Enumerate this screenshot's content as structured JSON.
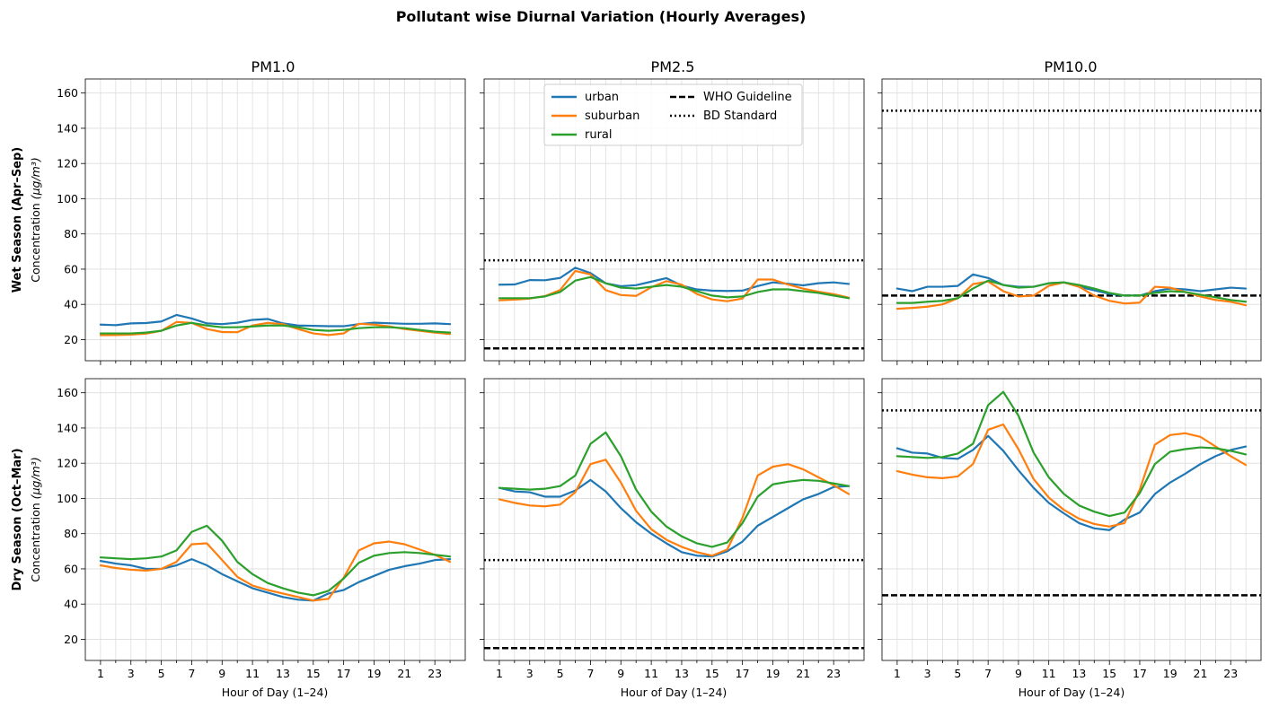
{
  "chart_data": {
    "type": "line",
    "title": "Pollutant wise Diurnal Variation (Hourly Averages)",
    "xlabel": "Hour of Day (1–24)",
    "ylabel_unit": "Concentration",
    "ylabel_unit_math": "(μg/m³)",
    "xlim": [
      0,
      25
    ],
    "ylim": [
      8,
      168
    ],
    "xticks": [
      1,
      3,
      5,
      7,
      9,
      11,
      13,
      15,
      17,
      19,
      21,
      23
    ],
    "yticks": [
      20,
      40,
      60,
      80,
      100,
      120,
      140,
      160
    ],
    "grid": true,
    "legend_placement": "upper center of PM2.5 wet-season panel",
    "legend": {
      "series": [
        "urban",
        "suburban",
        "rural"
      ],
      "references": [
        "WHO Guideline",
        "BD Standard"
      ]
    },
    "columns": [
      "PM1.0",
      "PM2.5",
      "PM10.0"
    ],
    "rows": [
      {
        "bold": "Wet Season (Apr–Sep)"
      },
      {
        "bold": "Dry Season (Oct–Mar)"
      }
    ],
    "colors": {
      "urban": "#1f77b4",
      "suburban": "#ff7f0e",
      "rural": "#2ca02c",
      "reference": "#000000",
      "grid": "#dddddd"
    },
    "x": [
      1,
      2,
      3,
      4,
      5,
      6,
      7,
      8,
      9,
      10,
      11,
      12,
      13,
      14,
      15,
      16,
      17,
      18,
      19,
      20,
      21,
      22,
      23,
      24
    ],
    "panels": [
      {
        "row": 0,
        "col": 0,
        "references": [],
        "series": [
          {
            "name": "urban",
            "values": [
              28.5,
              28.2,
              29.2,
              29.4,
              30.3,
              34.0,
              32.0,
              29.2,
              28.8,
              29.6,
              31.2,
              31.7,
              29.2,
              28.0,
              27.8,
              27.6,
              27.6,
              28.8,
              29.6,
              29.3,
              29.0,
              29.0,
              29.2,
              28.8
            ]
          },
          {
            "name": "suburban",
            "values": [
              22.5,
              22.6,
              22.8,
              23.4,
              25.0,
              30.0,
              29.5,
              26.0,
              24.3,
              24.2,
              28.0,
              29.5,
              28.8,
              26.0,
              23.5,
              22.6,
              23.5,
              29.0,
              28.5,
              27.5,
              26.0,
              25.0,
              24.0,
              23.2
            ]
          },
          {
            "name": "rural",
            "values": [
              23.5,
              23.5,
              23.5,
              24.0,
              25.0,
              28.0,
              29.5,
              28.0,
              27.0,
              27.0,
              27.5,
              28.0,
              28.0,
              27.0,
              25.5,
              25.0,
              25.5,
              26.5,
              27.0,
              27.0,
              26.5,
              25.5,
              24.5,
              24.0
            ]
          }
        ]
      },
      {
        "row": 0,
        "col": 1,
        "references": [
          {
            "name": "WHO Guideline",
            "value": 15
          },
          {
            "name": "BD Standard",
            "value": 65
          }
        ],
        "series": [
          {
            "name": "urban",
            "values": [
              51.2,
              51.3,
              53.8,
              53.7,
              55.0,
              60.8,
              57.8,
              52.0,
              50.3,
              50.9,
              52.9,
              54.9,
              50.7,
              48.5,
              47.8,
              47.6,
              47.8,
              50.4,
              52.5,
              51.7,
              50.8,
              52.0,
              52.5,
              51.6
            ]
          },
          {
            "name": "suburban",
            "values": [
              42.3,
              42.7,
              43.3,
              44.7,
              48.1,
              59.0,
              57.0,
              48.1,
              45.3,
              44.8,
              49.7,
              53.2,
              51.2,
              45.9,
              42.8,
              41.8,
              43.3,
              54.1,
              54.1,
              51.3,
              48.9,
              47.2,
              45.8,
              43.8
            ]
          },
          {
            "name": "rural",
            "values": [
              43.5,
              43.5,
              43.5,
              44.5,
              47.0,
              53.5,
              55.5,
              52.0,
              49.5,
              49.0,
              50.0,
              51.0,
              50.0,
              47.5,
              45.0,
              44.0,
              44.5,
              47.0,
              48.5,
              48.5,
              47.5,
              46.5,
              45.0,
              43.5
            ]
          }
        ]
      },
      {
        "row": 0,
        "col": 2,
        "references": [
          {
            "name": "WHO Guideline",
            "value": 45
          },
          {
            "name": "BD Standard",
            "value": 150
          }
        ],
        "series": [
          {
            "name": "urban",
            "values": [
              49.0,
              47.5,
              50.0,
              50.0,
              50.5,
              57.0,
              55.0,
              51.0,
              50.0,
              50.0,
              52.0,
              52.5,
              50.0,
              48.0,
              46.0,
              45.0,
              45.0,
              47.5,
              49.0,
              48.5,
              47.5,
              48.5,
              49.5,
              49.0
            ]
          },
          {
            "name": "suburban",
            "values": [
              37.5,
              38.0,
              38.7,
              40.0,
              43.5,
              51.5,
              53.0,
              47.5,
              44.5,
              45.0,
              50.5,
              52.5,
              50.0,
              45.0,
              42.0,
              40.5,
              41.0,
              50.0,
              49.5,
              47.0,
              44.5,
              42.5,
              41.5,
              39.5
            ]
          },
          {
            "name": "rural",
            "values": [
              40.8,
              40.8,
              41.5,
              42.0,
              43.5,
              49.0,
              53.5,
              51.0,
              49.5,
              50.0,
              52.0,
              52.5,
              51.0,
              49.0,
              46.5,
              45.0,
              45.0,
              46.5,
              47.5,
              47.0,
              45.5,
              44.0,
              42.5,
              41.5
            ]
          }
        ]
      },
      {
        "row": 1,
        "col": 0,
        "references": [],
        "series": [
          {
            "name": "urban",
            "values": [
              64.5,
              63.0,
              62.0,
              60.0,
              60.0,
              62.0,
              65.5,
              62.0,
              57.0,
              53.0,
              49.0,
              46.5,
              44.0,
              42.5,
              42.0,
              46.0,
              48.0,
              52.5,
              56.0,
              59.5,
              61.5,
              63.0,
              65.0,
              65.5
            ]
          },
          {
            "name": "suburban",
            "values": [
              62.0,
              60.5,
              59.5,
              59.0,
              60.0,
              64.0,
              74.0,
              74.5,
              65.0,
              55.5,
              50.5,
              48.0,
              46.0,
              44.0,
              42.0,
              43.0,
              55.0,
              70.5,
              74.5,
              75.5,
              74.0,
              71.0,
              68.0,
              64.0
            ]
          },
          {
            "name": "rural",
            "values": [
              66.5,
              66.0,
              65.5,
              66.0,
              67.0,
              70.5,
              81.0,
              84.5,
              76.0,
              64.0,
              57.0,
              52.0,
              49.0,
              46.5,
              45.0,
              47.5,
              54.5,
              63.5,
              67.5,
              69.0,
              69.5,
              69.0,
              68.0,
              67.0
            ]
          }
        ]
      },
      {
        "row": 1,
        "col": 1,
        "references": [
          {
            "name": "WHO Guideline",
            "value": 15
          },
          {
            "name": "BD Standard",
            "value": 65
          }
        ],
        "series": [
          {
            "name": "urban",
            "values": [
              106.0,
              104.0,
              103.5,
              101.0,
              101.0,
              104.5,
              110.5,
              104.0,
              94.5,
              86.5,
              80.0,
              74.5,
              69.5,
              67.5,
              67.0,
              70.0,
              75.5,
              84.5,
              89.5,
              94.5,
              99.5,
              102.5,
              106.5,
              107.0
            ]
          },
          {
            "name": "suburban",
            "values": [
              99.5,
              97.5,
              96.0,
              95.5,
              96.5,
              103.5,
              119.5,
              122.0,
              109.0,
              93.0,
              82.5,
              76.5,
              72.5,
              69.5,
              67.5,
              71.0,
              89.0,
              113.0,
              118.0,
              119.5,
              116.5,
              112.0,
              107.5,
              102.5
            ]
          },
          {
            "name": "rural",
            "values": [
              106.0,
              105.5,
              105.0,
              105.5,
              107.0,
              113.0,
              131.0,
              137.5,
              124.0,
              105.0,
              92.5,
              84.0,
              78.5,
              74.5,
              72.5,
              75.0,
              86.0,
              101.0,
              108.0,
              109.5,
              110.5,
              110.0,
              108.5,
              107.0
            ]
          }
        ]
      },
      {
        "row": 1,
        "col": 2,
        "references": [
          {
            "name": "WHO Guideline",
            "value": 45
          },
          {
            "name": "BD Standard",
            "value": 150
          }
        ],
        "series": [
          {
            "name": "urban",
            "values": [
              128.5,
              126.0,
              125.5,
              123.0,
              122.5,
              127.5,
              135.5,
              127.0,
              116.0,
              106.0,
              97.5,
              91.5,
              86.0,
              83.0,
              82.0,
              88.0,
              92.0,
              102.5,
              109.0,
              114.0,
              119.5,
              124.0,
              127.5,
              129.5
            ]
          },
          {
            "name": "suburban",
            "values": [
              115.5,
              113.5,
              112.0,
              111.5,
              112.5,
              119.5,
              139.0,
              142.0,
              128.0,
              111.0,
              100.5,
              93.5,
              88.5,
              85.5,
              84.0,
              86.0,
              105.0,
              130.5,
              136.0,
              137.0,
              135.0,
              129.5,
              124.0,
              119.0
            ]
          },
          {
            "name": "rural",
            "values": [
              124.0,
              123.5,
              123.0,
              123.5,
              125.5,
              131.0,
              153.0,
              160.5,
              147.0,
              126.0,
              112.0,
              102.5,
              96.0,
              92.5,
              90.0,
              92.0,
              103.0,
              119.5,
              126.5,
              128.0,
              129.0,
              128.5,
              127.0,
              125.0
            ]
          }
        ]
      }
    ]
  }
}
